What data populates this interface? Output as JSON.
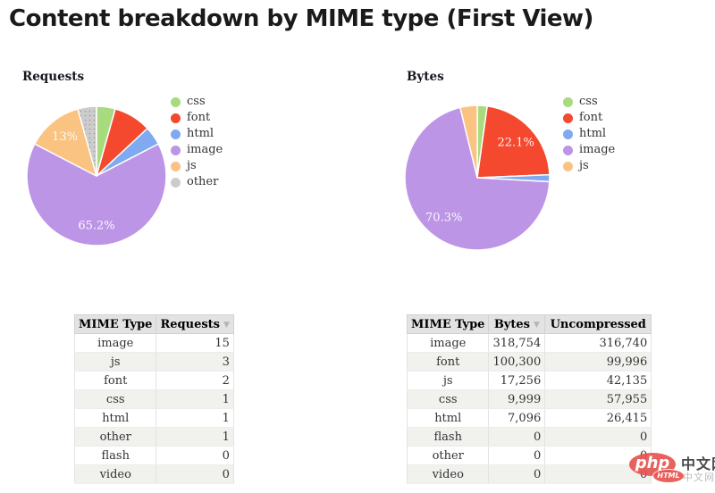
{
  "page": {
    "title": "Content breakdown by MIME type (First View)"
  },
  "colors": {
    "css": "#a8db7d",
    "font": "#f4482f",
    "html": "#7fa9f0",
    "image": "#bd95e6",
    "js": "#fac382",
    "other": "#cccccc",
    "table_header_bg": "#e3e3e3",
    "alt_row_bg": "#f1f1ee",
    "watermark_red": "#e85450"
  },
  "chart_data": [
    {
      "type": "pie",
      "title": "Requests",
      "legend_position": "right",
      "start_angle_deg": 0,
      "direction": "clockwise",
      "slices": [
        {
          "label": "css",
          "value": 1,
          "pct": 4.3,
          "pct_label": "",
          "color": "#a8db7d"
        },
        {
          "label": "font",
          "value": 2,
          "pct": 8.7,
          "pct_label": "",
          "color": "#f4482f"
        },
        {
          "label": "html",
          "value": 1,
          "pct": 4.3,
          "pct_label": "",
          "color": "#7fa9f0"
        },
        {
          "label": "image",
          "value": 15,
          "pct": 65.2,
          "pct_label": "65.2%",
          "color": "#bd95e6"
        },
        {
          "label": "js",
          "value": 3,
          "pct": 13.0,
          "pct_label": "13%",
          "color": "#fac382"
        },
        {
          "label": "other",
          "value": 1,
          "pct": 4.3,
          "pct_label": "",
          "color": "#cccccc",
          "pattern": "dots"
        }
      ]
    },
    {
      "type": "pie",
      "title": "Bytes",
      "legend_position": "right",
      "start_angle_deg": 0,
      "direction": "clockwise",
      "slices": [
        {
          "label": "css",
          "value": 9999,
          "pct": 2.2,
          "pct_label": "",
          "color": "#a8db7d"
        },
        {
          "label": "font",
          "value": 100300,
          "pct": 22.1,
          "pct_label": "22.1%",
          "color": "#f4482f"
        },
        {
          "label": "html",
          "value": 7096,
          "pct": 1.6,
          "pct_label": "",
          "color": "#7fa9f0"
        },
        {
          "label": "image",
          "value": 318754,
          "pct": 70.3,
          "pct_label": "70.3%",
          "color": "#bd95e6"
        },
        {
          "label": "js",
          "value": 17256,
          "pct": 3.8,
          "pct_label": "",
          "color": "#fac382"
        }
      ]
    }
  ],
  "tables": [
    {
      "name": "requests-table",
      "columns": [
        {
          "label": "MIME Type",
          "sort_arrow": false
        },
        {
          "label": "Requests",
          "sort_arrow": true
        }
      ],
      "rows": [
        [
          "image",
          "15"
        ],
        [
          "js",
          "3"
        ],
        [
          "font",
          "2"
        ],
        [
          "css",
          "1"
        ],
        [
          "html",
          "1"
        ],
        [
          "other",
          "1"
        ],
        [
          "flash",
          "0"
        ],
        [
          "video",
          "0"
        ]
      ]
    },
    {
      "name": "bytes-table",
      "columns": [
        {
          "label": "MIME Type",
          "sort_arrow": false
        },
        {
          "label": "Bytes",
          "sort_arrow": true
        },
        {
          "label": "Uncompressed",
          "sort_arrow": false
        }
      ],
      "rows": [
        [
          "image",
          "318,754",
          "316,740"
        ],
        [
          "font",
          "100,300",
          "99,996"
        ],
        [
          "js",
          "17,256",
          "42,135"
        ],
        [
          "css",
          "9,999",
          "57,955"
        ],
        [
          "html",
          "7,096",
          "26,415"
        ],
        [
          "flash",
          "0",
          "0"
        ],
        [
          "other",
          "0",
          "0"
        ],
        [
          "video",
          "0",
          "0"
        ]
      ]
    }
  ],
  "watermark": {
    "php": "php",
    "html_badge": "HTML",
    "cn_main": "中文网",
    "cn_sub": "中文网"
  }
}
